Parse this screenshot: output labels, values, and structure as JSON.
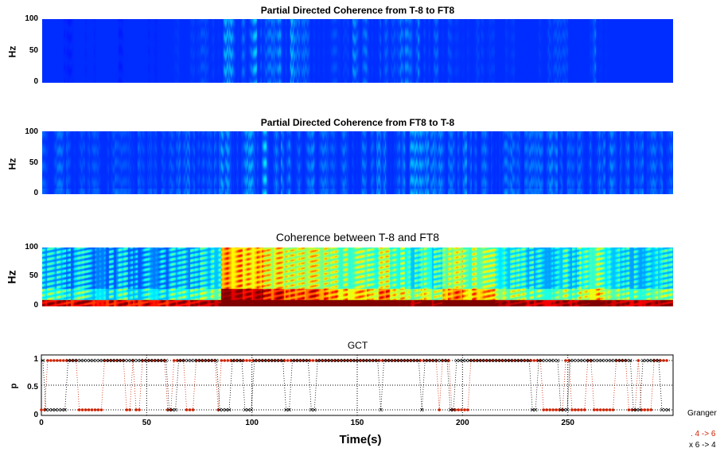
{
  "chart_data": [
    {
      "type": "heatmap",
      "title": "Partial Directed Coherence from T-8 to FT8",
      "ylabel": "Hz",
      "yticks": [
        "0",
        "50",
        "100"
      ],
      "ylim": [
        0,
        100
      ],
      "xlim": [
        0,
        300
      ],
      "column_intensity": [
        0.2,
        0.2,
        0.15,
        0.2,
        0.15,
        0.2,
        0.2,
        0.15,
        0.2,
        0.2,
        0.15,
        0.2,
        0.25,
        0.2,
        0.25,
        0.3,
        0.3,
        0.55,
        0.6,
        0.5,
        0.6,
        0.4,
        0.5,
        0.6,
        0.4,
        0.35,
        0.3,
        0.3,
        0.25,
        0.45,
        0.4,
        0.35,
        0.45,
        0.3,
        0.45,
        0.5,
        0.45,
        0.35,
        0.3,
        0.25,
        0.25,
        0.3,
        0.25,
        0.2,
        0.25,
        0.2,
        0.2,
        0.25,
        0.3,
        0.3,
        0.2,
        0.2,
        0.45,
        0.25,
        0.2,
        0.2,
        0.2,
        0.2,
        0.2,
        0.2
      ]
    },
    {
      "type": "heatmap",
      "title": "Partial Directed Coherence from FT8 to T-8",
      "ylabel": "Hz",
      "yticks": [
        "0",
        "50",
        "100"
      ],
      "ylim": [
        0,
        100
      ],
      "xlim": [
        0,
        300
      ],
      "column_intensity": [
        0.35,
        0.4,
        0.35,
        0.3,
        0.35,
        0.3,
        0.35,
        0.3,
        0.3,
        0.35,
        0.3,
        0.3,
        0.35,
        0.4,
        0.35,
        0.35,
        0.4,
        0.55,
        0.6,
        0.55,
        0.5,
        0.65,
        0.55,
        0.45,
        0.4,
        0.45,
        0.4,
        0.35,
        0.4,
        0.45,
        0.4,
        0.45,
        0.5,
        0.4,
        0.5,
        0.55,
        0.5,
        0.45,
        0.4,
        0.45,
        0.5,
        0.4,
        0.4,
        0.45,
        0.4,
        0.35,
        0.4,
        0.4,
        0.45,
        0.4,
        0.35,
        0.4,
        0.5,
        0.4,
        0.45,
        0.4,
        0.35,
        0.4,
        0.4,
        0.35
      ]
    },
    {
      "type": "heatmap",
      "title": "Coherence between T-8 and FT8",
      "ylabel": "Hz",
      "yticks": [
        "0",
        "50",
        "100"
      ],
      "ylim": [
        0,
        100
      ],
      "xlim": [
        0,
        300
      ],
      "column_intensity": [
        0.35,
        0.35,
        0.3,
        0.35,
        0.3,
        0.35,
        0.3,
        0.35,
        0.3,
        0.3,
        0.35,
        0.3,
        0.35,
        0.35,
        0.35,
        0.4,
        0.45,
        0.95,
        0.9,
        0.85,
        0.9,
        0.75,
        0.8,
        0.7,
        0.7,
        0.75,
        0.7,
        0.65,
        0.6,
        0.6,
        0.6,
        0.55,
        0.7,
        0.55,
        0.55,
        0.45,
        0.55,
        0.45,
        0.65,
        0.7,
        0.6,
        0.65,
        0.6,
        0.5,
        0.45,
        0.45,
        0.4,
        0.4,
        0.4,
        0.45,
        0.4,
        0.5,
        0.6,
        0.5,
        0.45,
        0.4,
        0.4,
        0.4,
        0.45,
        0.4
      ]
    },
    {
      "type": "scatter",
      "title": "GCT",
      "xlabel": "Time(s)",
      "ylabel": "p",
      "xlim": [
        0,
        300
      ],
      "ylim": [
        0,
        1
      ],
      "xticks": [
        "0",
        "50",
        "100",
        "150",
        "200",
        "250"
      ],
      "yticks": [
        "0",
        "0.5",
        "1"
      ],
      "legend": {
        "title": "Granger",
        "entries": [
          ". 4 -> 6",
          "x 6 -> 4"
        ],
        "placement": "right"
      },
      "series": [
        {
          "name": "4 -> 6",
          "color": "#cc2200",
          "zero_intervals": [
            [
              0,
              2
            ],
            [
              17,
              29
            ],
            [
              40,
              42
            ],
            [
              45,
              47
            ],
            [
              60,
              62
            ],
            [
              68,
              72
            ],
            [
              83,
              85
            ],
            [
              188,
              190
            ],
            [
              195,
              203
            ],
            [
              238,
              248
            ],
            [
              252,
              258
            ],
            [
              262,
              272
            ],
            [
              278,
              282
            ],
            [
              285,
              290
            ]
          ]
        },
        {
          "name": "6 -> 4",
          "color": "#000000",
          "zero_intervals": [
            [
              2,
              12
            ],
            [
              60,
              64
            ],
            [
              84,
              90
            ],
            [
              96,
              100
            ],
            [
              115,
              118
            ],
            [
              127,
              130
            ],
            [
              160,
              162
            ],
            [
              180,
              182
            ],
            [
              193,
              196
            ],
            [
              232,
              235
            ],
            [
              246,
              250
            ],
            [
              280,
              285
            ],
            [
              294,
              298
            ]
          ]
        }
      ]
    }
  ]
}
